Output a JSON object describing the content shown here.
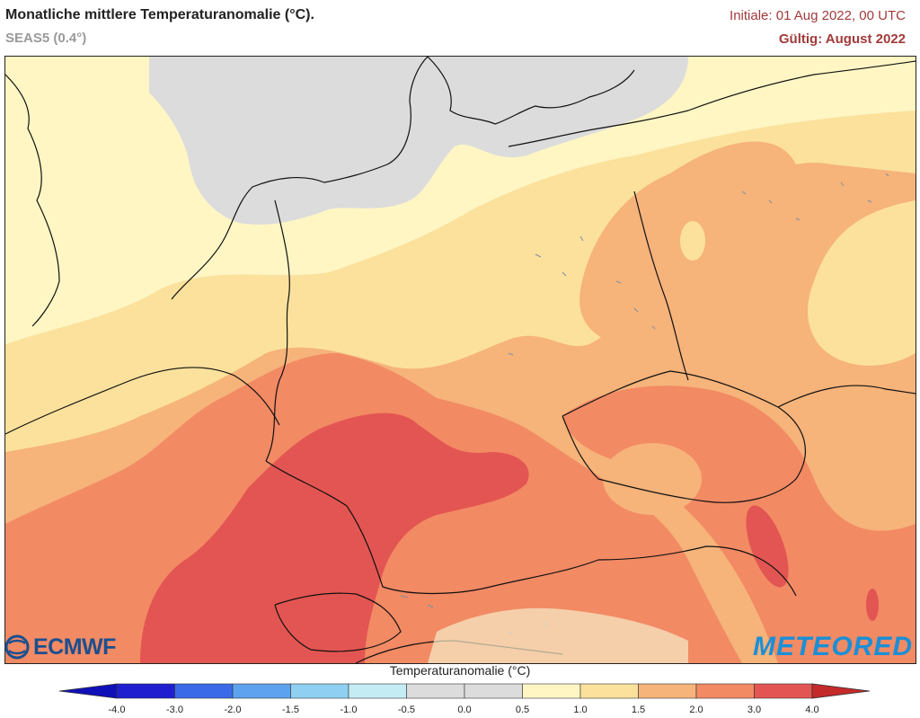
{
  "header": {
    "title": "Monatliche mittlere Temperaturanomalie (°C).",
    "subtitle": "SEAS5 (0.4°)",
    "initial": "Initiale: 01 Aug 2022, 00 UTC",
    "valid": "Gültig: August 2022"
  },
  "logos": {
    "left": "ECMWF",
    "right": "METEORED"
  },
  "colorbar": {
    "title": "Temperaturanomalie (°C)",
    "ticks": [
      "-4.0",
      "-3.0",
      "-2.0",
      "-1.5",
      "-1.0",
      "-0.5",
      "0.0",
      "0.5",
      "1.0",
      "1.5",
      "2.0",
      "3.0",
      "4.0"
    ],
    "colors": [
      "#1f1fd0",
      "#3a6ae8",
      "#5da2ee",
      "#8fd0f2",
      "#c4ecf5",
      "#dcdcdc",
      "#dcdcdc",
      "#fff6c4",
      "#fbe19c",
      "#f6b37a",
      "#f28a64",
      "#e35552"
    ],
    "under_color": "#1010b8",
    "over_color": "#c42a2a"
  },
  "legend_colors": {
    "neutral": "#dcdcdc",
    "anom_0_5_1_0": "#fff6c4",
    "anom_1_0_1_5": "#fbe19c",
    "anom_1_5_2_0": "#f6b37a",
    "anom_2_0_3_0": "#f28a64",
    "anom_3_0_4_0": "#e35552"
  }
}
